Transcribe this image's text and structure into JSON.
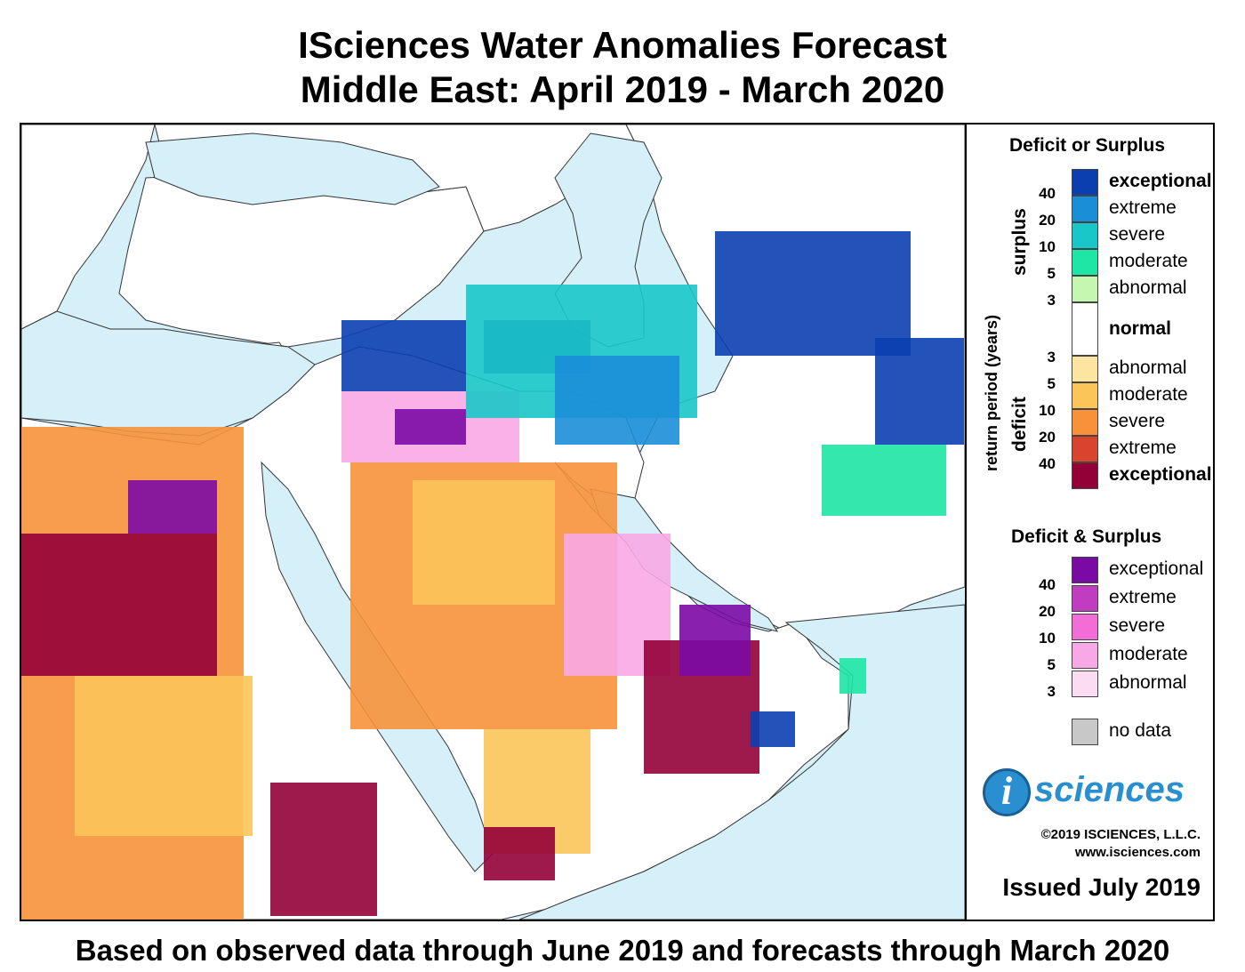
{
  "title": {
    "line1": "ISciences Water Anomalies Forecast",
    "line2": "Middle East: April 2019 - March 2020"
  },
  "footer": "Based on observed data through June 2019 and forecasts through March 2020",
  "legend": {
    "heading1": "Deficit or Surplus",
    "axis_label": "return period (years)",
    "surplus_label": "surplus",
    "deficit_label": "deficit",
    "surplus": [
      {
        "label": "exceptional",
        "color": "#0b3fb0",
        "bold": true
      },
      {
        "label": "extreme",
        "color": "#1b8ed8"
      },
      {
        "label": "severe",
        "color": "#19c6c8"
      },
      {
        "label": "moderate",
        "color": "#1ee6a4"
      },
      {
        "label": "abnormal",
        "color": "#c6f7b0"
      }
    ],
    "surplus_numbers": [
      "40",
      "20",
      "10",
      "5",
      "3"
    ],
    "normal": {
      "label": "normal",
      "color": "#ffffff"
    },
    "deficit": [
      {
        "label": "abnormal",
        "color": "#fde4a0"
      },
      {
        "label": "moderate",
        "color": "#fbc55a"
      },
      {
        "label": "severe",
        "color": "#f7923a"
      },
      {
        "label": "extreme",
        "color": "#d9442f"
      },
      {
        "label": "exceptional",
        "color": "#930038",
        "bold": true
      }
    ],
    "deficit_numbers": [
      "3",
      "5",
      "10",
      "20",
      "40"
    ],
    "heading2": "Deficit & Surplus",
    "both": [
      {
        "label": "exceptional",
        "color": "#7b0aa5"
      },
      {
        "label": "extreme",
        "color": "#c03cc0"
      },
      {
        "label": "severe",
        "color": "#f26ed6"
      },
      {
        "label": "moderate",
        "color": "#f8a8e6"
      },
      {
        "label": "abnormal",
        "color": "#fcdcf2"
      }
    ],
    "both_numbers": [
      "40",
      "20",
      "10",
      "5",
      "3"
    ],
    "nodata": {
      "label": "no data",
      "color": "#c8c8c8"
    }
  },
  "brand": {
    "logo_letter": "i",
    "logo_word": "sciences",
    "copyright": "©2019 ISCIENCES, L.L.C.",
    "website": "www.isciences.com",
    "issued": "Issued July 2019"
  },
  "map": {
    "sea_color": "#d6f0fa",
    "land_color": "#ffffff"
  }
}
